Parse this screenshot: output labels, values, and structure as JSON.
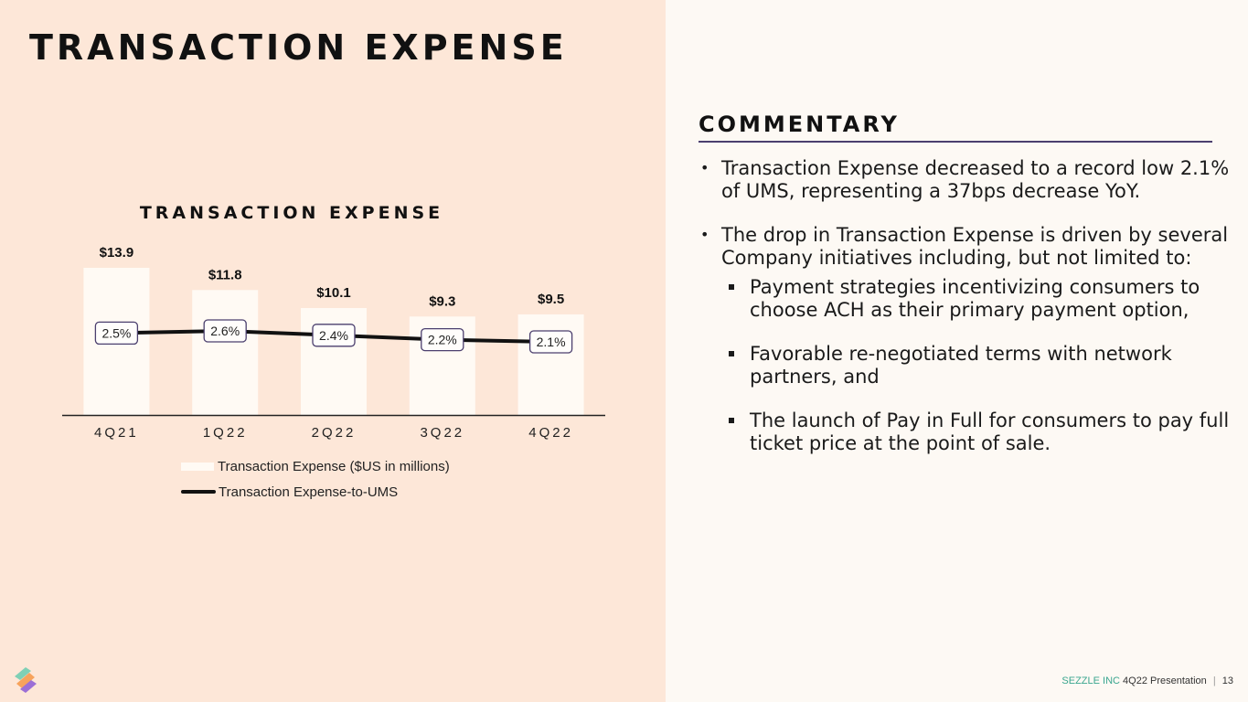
{
  "page": {
    "title": "TRANSACTION EXPENSE"
  },
  "chart": {
    "title": "TRANSACTION EXPENSE",
    "legend": {
      "bar_label": "Transaction Expense ($US in millions)",
      "line_label": "Transaction Expense-to-UMS"
    }
  },
  "chart_data": {
    "type": "bar",
    "title": "TRANSACTION EXPENSE",
    "categories": [
      "4Q21",
      "1Q22",
      "2Q22",
      "3Q22",
      "4Q22"
    ],
    "series": [
      {
        "name": "Transaction Expense ($US in millions)",
        "type": "bar",
        "values": [
          13.9,
          11.8,
          10.1,
          9.3,
          9.5
        ],
        "labels": [
          "$13.9",
          "$11.8",
          "$10.1",
          "$9.3",
          "$9.5"
        ],
        "color": "#fffaf4"
      },
      {
        "name": "Transaction Expense-to-UMS",
        "type": "line",
        "values": [
          2.5,
          2.6,
          2.4,
          2.2,
          2.1
        ],
        "labels": [
          "2.5%",
          "2.6%",
          "2.4%",
          "2.2%",
          "2.1%"
        ],
        "color": "#111111"
      }
    ],
    "legend_position": "bottom",
    "grid": false
  },
  "commentary": {
    "title": "COMMENTARY",
    "bullet1": "Transaction Expense decreased to a record low 2.1% of UMS, representing a 37bps decrease YoY.",
    "bullet2": "The drop in Transaction Expense is driven by several Company initiatives including, but not limited to:",
    "sub1": "Payment strategies incentivizing consumers to choose ACH as their primary payment option,",
    "sub2": "Favorable re-negotiated terms with network partners, and",
    "sub3": "The launch of Pay in Full for consumers to pay full ticket price at the point of sale."
  },
  "footer": {
    "brand": "SEZZLE INC",
    "presentation": "4Q22 Presentation",
    "separator": "|",
    "page_number": "13"
  },
  "colors": {
    "left_background": "#fde7d8",
    "right_background": "#fdf9f4",
    "bar": "#fffaf4",
    "label_border": "#4b3f6e",
    "brand": "#3aa68f"
  },
  "icons": {
    "logo": "sezzle-logo-icon"
  }
}
